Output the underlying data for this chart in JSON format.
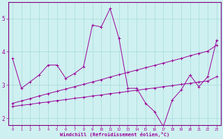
{
  "xlabel": "Windchill (Refroidissement éolien,°C)",
  "background_color": "#cff0f0",
  "spine_color": "#800080",
  "grid_color": "#b0d8d8",
  "line_color": "#990099",
  "hours": [
    0,
    1,
    2,
    3,
    4,
    5,
    6,
    7,
    8,
    9,
    10,
    11,
    12,
    13,
    14,
    15,
    16,
    17,
    18,
    19,
    20,
    21,
    22,
    23
  ],
  "series1": [
    3.8,
    2.9,
    3.1,
    3.3,
    3.6,
    3.6,
    3.2,
    3.35,
    3.55,
    4.8,
    4.75,
    5.3,
    4.4,
    2.9,
    2.9,
    2.45,
    2.2,
    1.75,
    2.55,
    2.85,
    3.3,
    2.95,
    3.25,
    4.35
  ],
  "series2": [
    2.45,
    2.52,
    2.59,
    2.67,
    2.74,
    2.81,
    2.88,
    2.95,
    3.02,
    3.09,
    3.16,
    3.24,
    3.31,
    3.38,
    3.45,
    3.52,
    3.59,
    3.66,
    3.73,
    3.8,
    3.88,
    3.95,
    4.02,
    4.2
  ],
  "series3": [
    2.35,
    2.39,
    2.42,
    2.46,
    2.49,
    2.53,
    2.56,
    2.6,
    2.63,
    2.67,
    2.7,
    2.74,
    2.77,
    2.81,
    2.84,
    2.88,
    2.91,
    2.95,
    2.98,
    3.02,
    3.05,
    3.09,
    3.12,
    3.25
  ],
  "ylim": [
    1.8,
    5.5
  ],
  "yticks": [
    2,
    3,
    4,
    5
  ],
  "xticks": [
    0,
    1,
    2,
    3,
    4,
    5,
    6,
    7,
    8,
    9,
    10,
    11,
    12,
    13,
    14,
    15,
    16,
    17,
    18,
    19,
    20,
    21,
    22,
    23
  ]
}
